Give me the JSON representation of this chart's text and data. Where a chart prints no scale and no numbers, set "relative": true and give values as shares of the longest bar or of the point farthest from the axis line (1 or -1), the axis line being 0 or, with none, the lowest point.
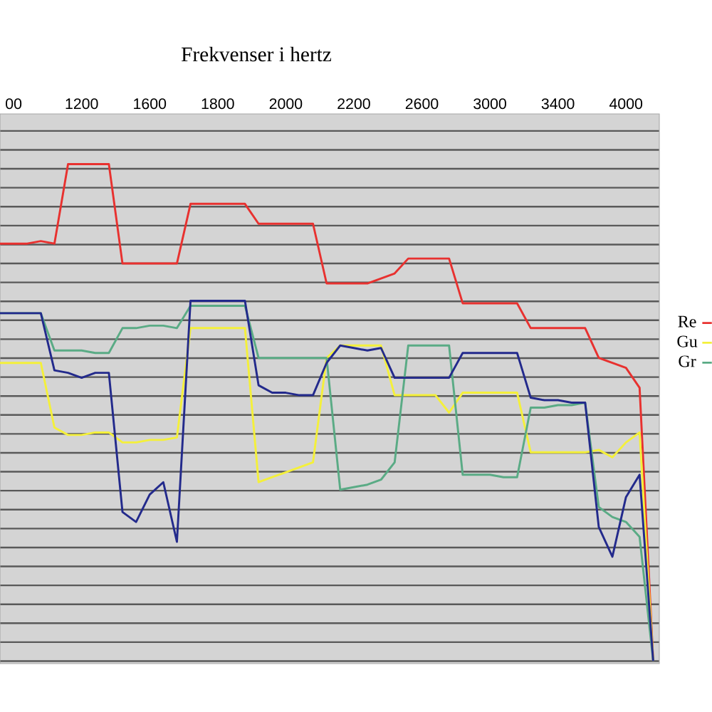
{
  "chart_data": {
    "type": "line",
    "title": "Frekvenser i hertz",
    "relative": true,
    "grid": "y",
    "legend": "right",
    "categories": [
      null,
      "00",
      null,
      null,
      null,
      null,
      "1200",
      null,
      null,
      null,
      null,
      "1600",
      null,
      null,
      null,
      null,
      "1800",
      null,
      null,
      null,
      null,
      "2000",
      null,
      null,
      null,
      null,
      "2200",
      null,
      null,
      null,
      null,
      "2600",
      null,
      null,
      null,
      null,
      "3000",
      null,
      null,
      null,
      null,
      "3400",
      null,
      null,
      null,
      null,
      "4000",
      null,
      null
    ],
    "series": [
      {
        "name": "Re",
        "color": "#e8312f",
        "values": [
          0.84,
          0.84,
          0.84,
          0.845,
          0.84,
          1,
          1,
          1,
          1,
          0.8,
          0.8,
          0.8,
          0.8,
          0.8,
          0.92,
          0.92,
          0.92,
          0.92,
          0.92,
          0.88,
          0.88,
          0.88,
          0.88,
          0.88,
          0.76,
          0.76,
          0.76,
          0.76,
          0.77,
          0.78,
          0.81,
          0.81,
          0.81,
          0.81,
          0.72,
          0.72,
          0.72,
          0.72,
          0.72,
          0.67,
          0.67,
          0.67,
          0.67,
          0.67,
          0.61,
          0.6,
          0.59,
          0.55,
          0
        ]
      },
      {
        "name": "Gu",
        "color": "#f4f03a",
        "values": [
          0.6,
          0.6,
          0.6,
          0.6,
          0.47,
          0.455,
          0.455,
          0.46,
          0.46,
          0.44,
          0.44,
          0.445,
          0.445,
          0.45,
          0.67,
          0.67,
          0.67,
          0.67,
          0.67,
          0.36,
          0.37,
          0.38,
          0.39,
          0.4,
          0.61,
          0.635,
          0.635,
          0.635,
          0.635,
          0.535,
          0.535,
          0.535,
          0.535,
          0.5,
          0.54,
          0.54,
          0.54,
          0.54,
          0.54,
          0.42,
          0.42,
          0.42,
          0.42,
          0.42,
          0.425,
          0.41,
          0.44,
          0.46,
          0
        ]
      },
      {
        "name": "Gr",
        "color": "#5aab85",
        "values": [
          0.7,
          0.7,
          0.7,
          0.7,
          0.625,
          0.625,
          0.625,
          0.62,
          0.62,
          0.67,
          0.67,
          0.675,
          0.675,
          0.67,
          0.715,
          0.715,
          0.715,
          0.715,
          0.715,
          0.61,
          0.61,
          0.61,
          0.61,
          0.61,
          0.61,
          0.345,
          0.35,
          0.355,
          0.365,
          0.4,
          0.635,
          0.635,
          0.635,
          0.635,
          0.375,
          0.375,
          0.375,
          0.37,
          0.37,
          0.51,
          0.51,
          0.515,
          0.515,
          0.52,
          0.31,
          0.29,
          0.28,
          0.25,
          0
        ]
      },
      {
        "color": "#232a8c",
        "values": [
          0.7,
          0.7,
          0.7,
          0.7,
          0.585,
          0.58,
          0.57,
          0.58,
          0.58,
          0.3,
          0.28,
          0.335,
          0.36,
          0.24,
          0.725,
          0.725,
          0.725,
          0.725,
          0.725,
          0.555,
          0.54,
          0.54,
          0.535,
          0.535,
          0.6,
          0.635,
          0.63,
          0.625,
          0.63,
          0.57,
          0.57,
          0.57,
          0.57,
          0.57,
          0.62,
          0.62,
          0.62,
          0.62,
          0.62,
          0.53,
          0.525,
          0.525,
          0.52,
          0.52,
          0.27,
          0.21,
          0.33,
          0.375,
          0
        ]
      }
    ]
  }
}
